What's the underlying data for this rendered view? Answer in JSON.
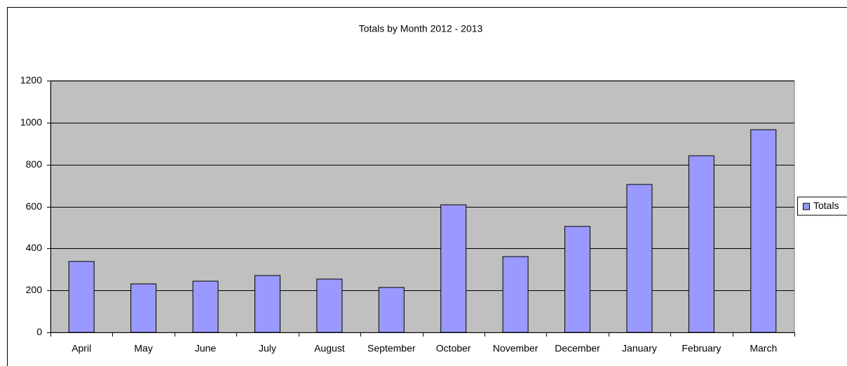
{
  "chart_data": {
    "type": "bar",
    "title": "Totals by Month 2012 - 2013",
    "categories": [
      "April",
      "May",
      "June",
      "July",
      "August",
      "September",
      "October",
      "November",
      "December",
      "January",
      "February",
      "March"
    ],
    "series": [
      {
        "name": "Totals",
        "color": "#9999ff",
        "values": [
          338,
          231,
          244,
          271,
          254,
          214,
          608,
          361,
          505,
          705,
          842,
          966
        ]
      }
    ],
    "ylim": [
      0,
      1200
    ],
    "yticks": [
      0,
      200,
      400,
      600,
      800,
      1000,
      1200
    ],
    "grid": true,
    "legend": "right"
  }
}
